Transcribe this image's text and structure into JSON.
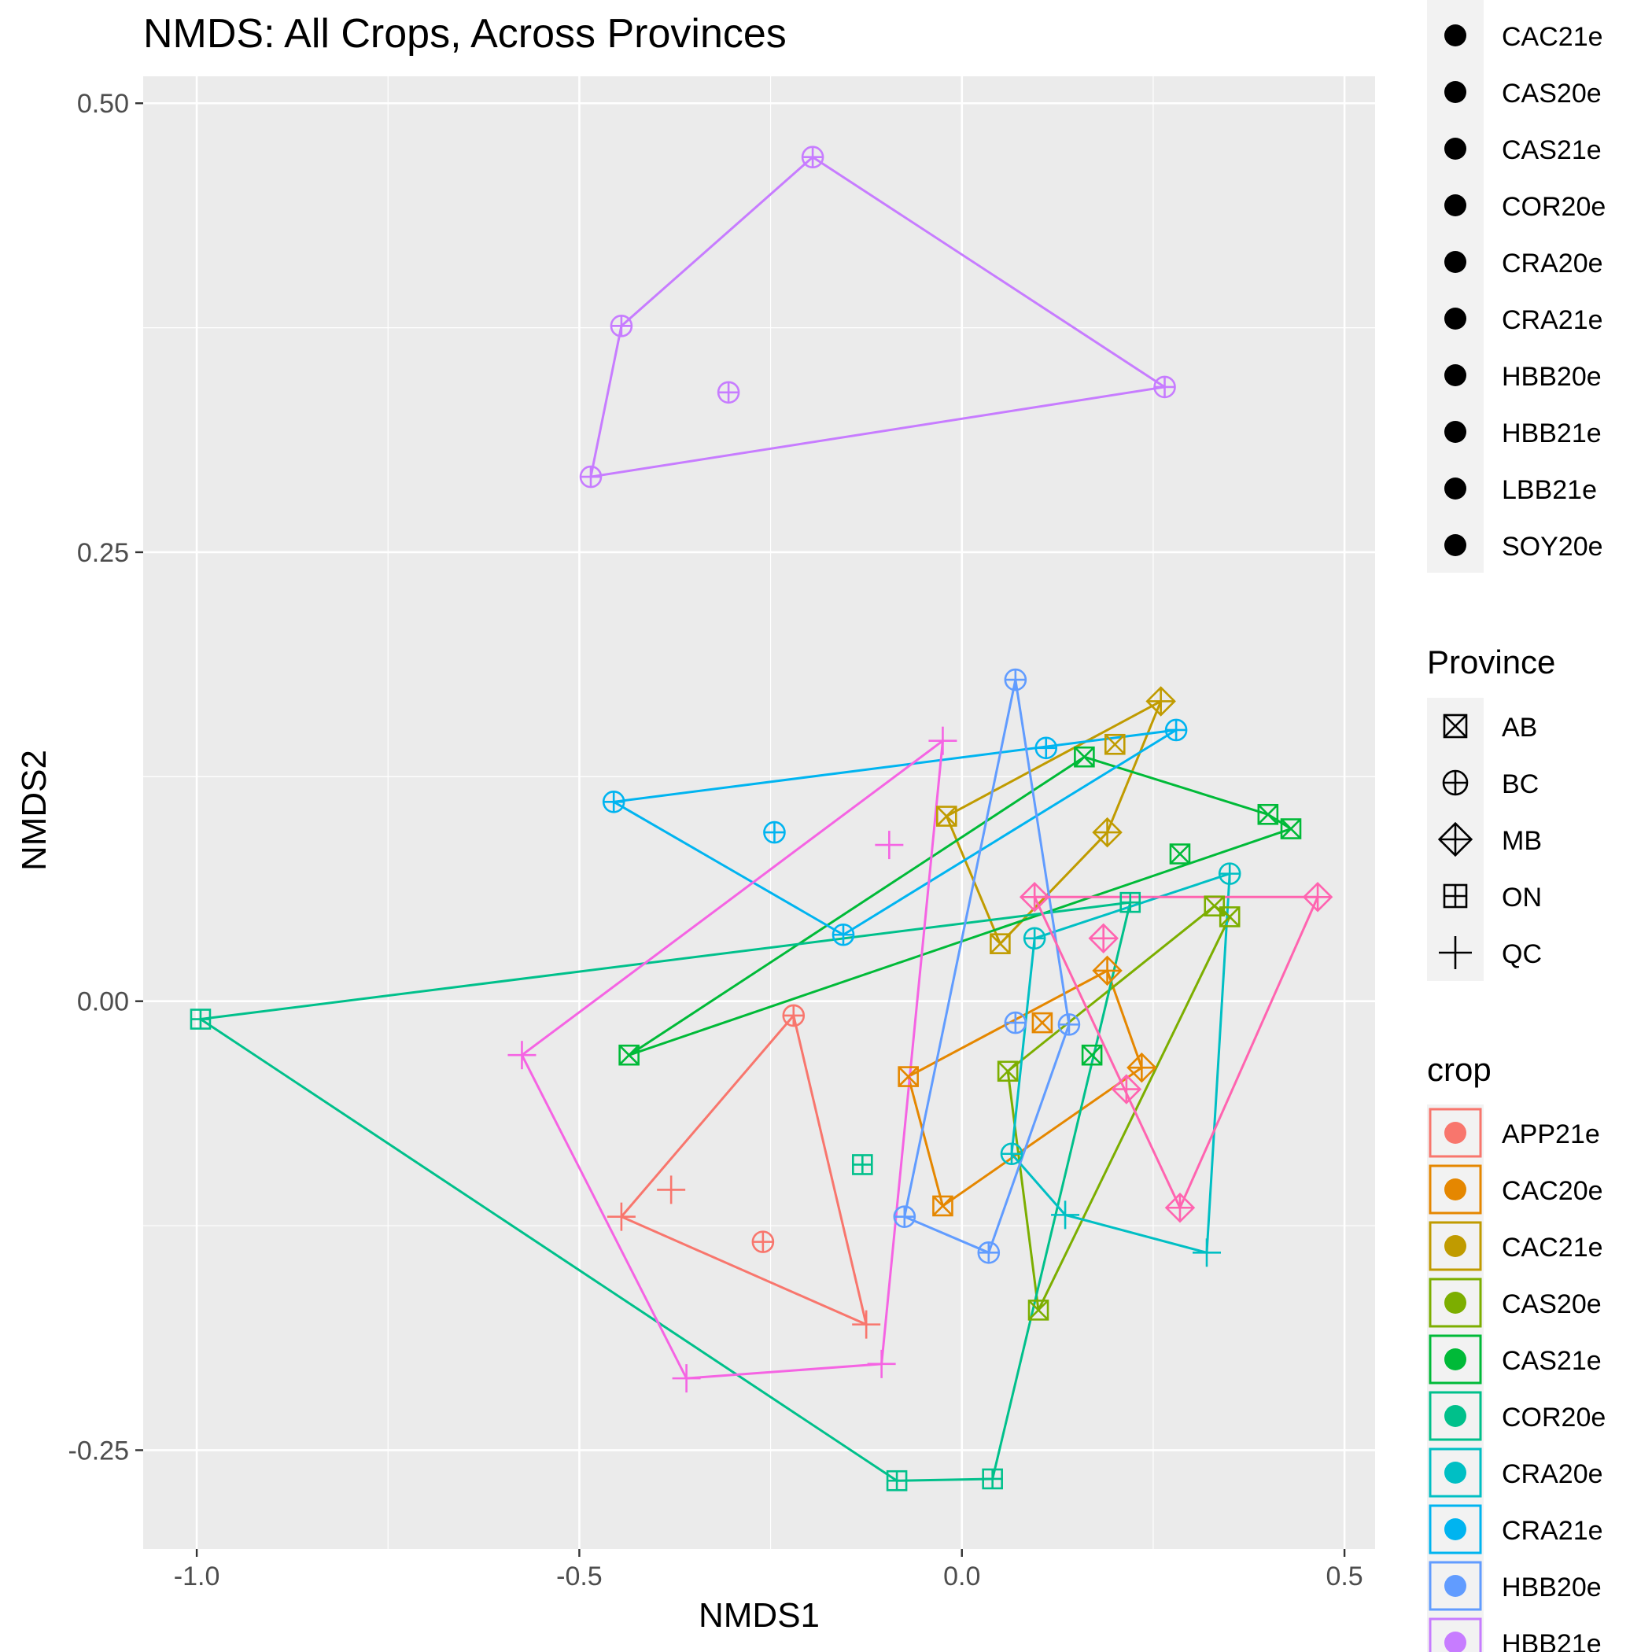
{
  "chart_data": {
    "type": "scatter",
    "title": "NMDS: All Crops, Across Provinces",
    "xlabel": "NMDS1",
    "ylabel": "NMDS2",
    "xlim": [
      -1.07,
      0.54
    ],
    "ylim": [
      -0.305,
      0.515
    ],
    "x_ticks": [
      -1.0,
      -0.5,
      0.0,
      0.5
    ],
    "x_tick_labels": [
      "-1.0",
      "-0.5",
      "0.0",
      "0.5"
    ],
    "y_ticks": [
      -0.25,
      0.0,
      0.25,
      0.5
    ],
    "y_tick_labels": [
      "-0.25",
      "0.00",
      "0.25",
      "0.50"
    ],
    "grid": true,
    "hull_outlines": true,
    "colors": {
      "panel": "#EBEBEB",
      "grid": "#FFFFFF",
      "text": "#000000",
      "tick_text": "#4D4D4D",
      "tick_mark": "#333333",
      "legend_key_bg": "#F2F2F2"
    },
    "shapes": {
      "AB": "square-cross",
      "BC": "circle-plus",
      "MB": "diamond-plus",
      "ON": "square-plus",
      "QC": "plus"
    },
    "legend_top": {
      "items": [
        "CAC21e",
        "CAS20e",
        "CAS21e",
        "COR20e",
        "CRA20e",
        "CRA21e",
        "HBB20e",
        "HBB21e",
        "LBB21e",
        "SOY20e"
      ]
    },
    "legend_province": {
      "title": "Province",
      "items": [
        "AB",
        "BC",
        "MB",
        "ON",
        "QC"
      ]
    },
    "legend_crop": {
      "title": "crop",
      "items": [
        {
          "label": "APP21e",
          "color": "#F8766D"
        },
        {
          "label": "CAC20e",
          "color": "#E58700"
        },
        {
          "label": "CAC21e",
          "color": "#C09B00"
        },
        {
          "label": "CAS20e",
          "color": "#7CAE00"
        },
        {
          "label": "CAS21e",
          "color": "#00BA38"
        },
        {
          "label": "COR20e",
          "color": "#00C08B"
        },
        {
          "label": "CRA20e",
          "color": "#00BFC4"
        },
        {
          "label": "CRA21e",
          "color": "#00B4F0"
        },
        {
          "label": "HBB20e",
          "color": "#619CFF"
        },
        {
          "label": "HBB21e",
          "color": "#C77CFF"
        }
      ]
    },
    "series": [
      {
        "crop": "APP21e",
        "color": "#F8766D",
        "points": [
          [
            -0.22,
            -0.008,
            "BC"
          ],
          [
            -0.445,
            -0.12,
            "QC"
          ],
          [
            -0.38,
            -0.105,
            "QC"
          ],
          [
            -0.26,
            -0.134,
            "BC"
          ],
          [
            -0.125,
            -0.18,
            "QC"
          ]
        ],
        "hull": [
          [
            -0.22,
            -0.008
          ],
          [
            -0.445,
            -0.12
          ],
          [
            -0.125,
            -0.18
          ]
        ]
      },
      {
        "crop": "CAC20e",
        "color": "#E58700",
        "points": [
          [
            -0.07,
            -0.042,
            "AB"
          ],
          [
            -0.025,
            -0.114,
            "AB"
          ],
          [
            0.105,
            -0.012,
            "AB"
          ],
          [
            0.19,
            0.017,
            "MB"
          ],
          [
            0.235,
            -0.037,
            "MB"
          ]
        ],
        "hull": [
          [
            -0.07,
            -0.042
          ],
          [
            0.19,
            0.017
          ],
          [
            0.235,
            -0.037
          ],
          [
            -0.025,
            -0.114
          ]
        ]
      },
      {
        "crop": "CAC21e",
        "color": "#C09B00",
        "points": [
          [
            -0.02,
            0.103,
            "AB"
          ],
          [
            0.05,
            0.032,
            "AB"
          ],
          [
            0.2,
            0.143,
            "AB"
          ],
          [
            0.26,
            0.167,
            "MB"
          ],
          [
            0.19,
            0.094,
            "MB"
          ]
        ],
        "hull": [
          [
            -0.02,
            0.103
          ],
          [
            0.26,
            0.167
          ],
          [
            0.19,
            0.094
          ],
          [
            0.05,
            0.032
          ]
        ]
      },
      {
        "crop": "CAS20e",
        "color": "#7CAE00",
        "points": [
          [
            0.06,
            -0.039,
            "AB"
          ],
          [
            0.1,
            -0.172,
            "AB"
          ],
          [
            0.33,
            0.053,
            "AB"
          ],
          [
            0.35,
            0.047,
            "AB"
          ]
        ],
        "hull": [
          [
            0.06,
            -0.039
          ],
          [
            0.33,
            0.053
          ],
          [
            0.35,
            0.047
          ],
          [
            0.1,
            -0.172
          ]
        ]
      },
      {
        "crop": "CAS21e",
        "color": "#00BA38",
        "points": [
          [
            -0.435,
            -0.03,
            "AB"
          ],
          [
            0.16,
            0.136,
            "AB"
          ],
          [
            0.4,
            0.104,
            "AB"
          ],
          [
            0.43,
            0.096,
            "AB"
          ],
          [
            0.285,
            0.082,
            "AB"
          ],
          [
            0.17,
            -0.03,
            "AB"
          ]
        ],
        "hull": [
          [
            -0.435,
            -0.03
          ],
          [
            0.16,
            0.136
          ],
          [
            0.4,
            0.104
          ],
          [
            0.43,
            0.096
          ]
        ]
      },
      {
        "crop": "COR20e",
        "color": "#00C08B",
        "points": [
          [
            -0.995,
            -0.01,
            "ON"
          ],
          [
            -0.085,
            -0.267,
            "ON"
          ],
          [
            0.04,
            -0.266,
            "ON"
          ],
          [
            0.22,
            0.055,
            "ON"
          ],
          [
            -0.13,
            -0.091,
            "ON"
          ]
        ],
        "hull": [
          [
            -0.995,
            -0.01
          ],
          [
            0.22,
            0.055
          ],
          [
            0.04,
            -0.266
          ],
          [
            -0.085,
            -0.267
          ]
        ]
      },
      {
        "crop": "CRA20e",
        "color": "#00BFC4",
        "points": [
          [
            0.065,
            -0.085,
            "BC"
          ],
          [
            0.095,
            0.035,
            "BC"
          ],
          [
            0.35,
            0.071,
            "BC"
          ],
          [
            0.32,
            -0.14,
            "QC"
          ],
          [
            0.135,
            -0.119,
            "QC"
          ]
        ],
        "hull": [
          [
            0.065,
            -0.085
          ],
          [
            0.095,
            0.035
          ],
          [
            0.35,
            0.071
          ],
          [
            0.32,
            -0.14
          ],
          [
            0.135,
            -0.119
          ]
        ]
      },
      {
        "crop": "CRA21e",
        "color": "#00B4F0",
        "points": [
          [
            -0.455,
            0.111,
            "BC"
          ],
          [
            -0.245,
            0.094,
            "BC"
          ],
          [
            -0.155,
            0.037,
            "BC"
          ],
          [
            0.11,
            0.141,
            "BC"
          ],
          [
            0.28,
            0.151,
            "BC"
          ]
        ],
        "hull": [
          [
            -0.455,
            0.111
          ],
          [
            0.28,
            0.151
          ],
          [
            -0.155,
            0.037
          ]
        ]
      },
      {
        "crop": "HBB20e",
        "color": "#619CFF",
        "points": [
          [
            0.07,
            0.179,
            "BC"
          ],
          [
            0.07,
            -0.012,
            "BC"
          ],
          [
            0.14,
            -0.013,
            "BC"
          ],
          [
            -0.075,
            -0.12,
            "BC"
          ],
          [
            0.035,
            -0.14,
            "BC"
          ]
        ],
        "hull": [
          [
            0.07,
            0.179
          ],
          [
            0.14,
            -0.013
          ],
          [
            0.035,
            -0.14
          ],
          [
            -0.075,
            -0.12
          ]
        ]
      },
      {
        "crop": "HBB21e",
        "color": "#C77CFF",
        "points": [
          [
            -0.195,
            0.47,
            "BC"
          ],
          [
            -0.445,
            0.376,
            "BC"
          ],
          [
            -0.305,
            0.339,
            "BC"
          ],
          [
            -0.485,
            0.292,
            "BC"
          ],
          [
            0.265,
            0.342,
            "BC"
          ]
        ],
        "hull": [
          [
            -0.195,
            0.47
          ],
          [
            0.265,
            0.342
          ],
          [
            -0.485,
            0.292
          ],
          [
            -0.445,
            0.376
          ]
        ]
      },
      {
        "crop": "LBB21e",
        "color": "#F564E3",
        "points": [
          [
            -0.025,
            0.145,
            "QC"
          ],
          [
            -0.095,
            0.087,
            "QC"
          ],
          [
            -0.575,
            -0.03,
            "QC"
          ],
          [
            -0.36,
            -0.21,
            "QC"
          ],
          [
            -0.105,
            -0.202,
            "QC"
          ]
        ],
        "hull": [
          [
            -0.025,
            0.145
          ],
          [
            -0.105,
            -0.202
          ],
          [
            -0.36,
            -0.21
          ],
          [
            -0.575,
            -0.03
          ]
        ]
      },
      {
        "crop": "SOY20e",
        "color": "#FF64B0",
        "points": [
          [
            0.095,
            0.058,
            "MB"
          ],
          [
            0.465,
            0.058,
            "MB"
          ],
          [
            0.185,
            0.035,
            "MB"
          ],
          [
            0.215,
            -0.049,
            "MB"
          ],
          [
            0.285,
            -0.115,
            "MB"
          ]
        ],
        "hull": [
          [
            0.095,
            0.058
          ],
          [
            0.465,
            0.058
          ],
          [
            0.285,
            -0.115
          ]
        ]
      }
    ]
  }
}
